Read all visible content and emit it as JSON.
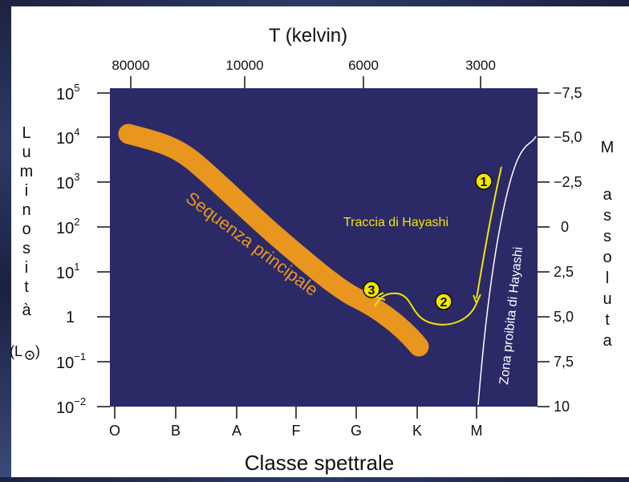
{
  "top_axis": {
    "title": "T (kelvin)",
    "ticks": [
      "80000",
      "10000",
      "6000",
      "3000"
    ]
  },
  "bottom_axis": {
    "title": "Classe spettrale",
    "ticks": [
      "O",
      "B",
      "A",
      "F",
      "G",
      "K",
      "M"
    ]
  },
  "left_axis": {
    "letters": [
      "L",
      "u",
      "m",
      "i",
      "n",
      "o",
      "s",
      "i",
      "t",
      "à"
    ],
    "unit": "(L",
    "unit_close": ")",
    "ticks": [
      {
        "base": "10",
        "exp": "5"
      },
      {
        "base": "10",
        "exp": "4"
      },
      {
        "base": "10",
        "exp": "3"
      },
      {
        "base": "10",
        "exp": "2"
      },
      {
        "base": "10",
        "exp": "1"
      },
      {
        "base": "1",
        "exp": ""
      },
      {
        "base": "10",
        "exp": "−1"
      },
      {
        "base": "10",
        "exp": "−2"
      }
    ]
  },
  "right_axis": {
    "letters": [
      "M",
      "a",
      "s",
      "s",
      "o",
      "l",
      "u",
      "t",
      "a"
    ],
    "ticks": [
      "−7,5",
      "−5,0",
      "−2,5",
      "0",
      "2,5",
      "5,0",
      "7,5",
      "10"
    ]
  },
  "labels": {
    "main_sequence": "Sequenza principale",
    "hayashi_track": "Traccia di Hayashi",
    "forbidden_zone": "Zona proibita di Hayashi",
    "stage_1": "1",
    "stage_2": "2",
    "stage_3": "3"
  },
  "colors": {
    "plot_bg": "#2b2a66",
    "main_sequence": "#e8961e",
    "hayashi": "#f2e600",
    "forbidden": "#ffffff"
  }
}
